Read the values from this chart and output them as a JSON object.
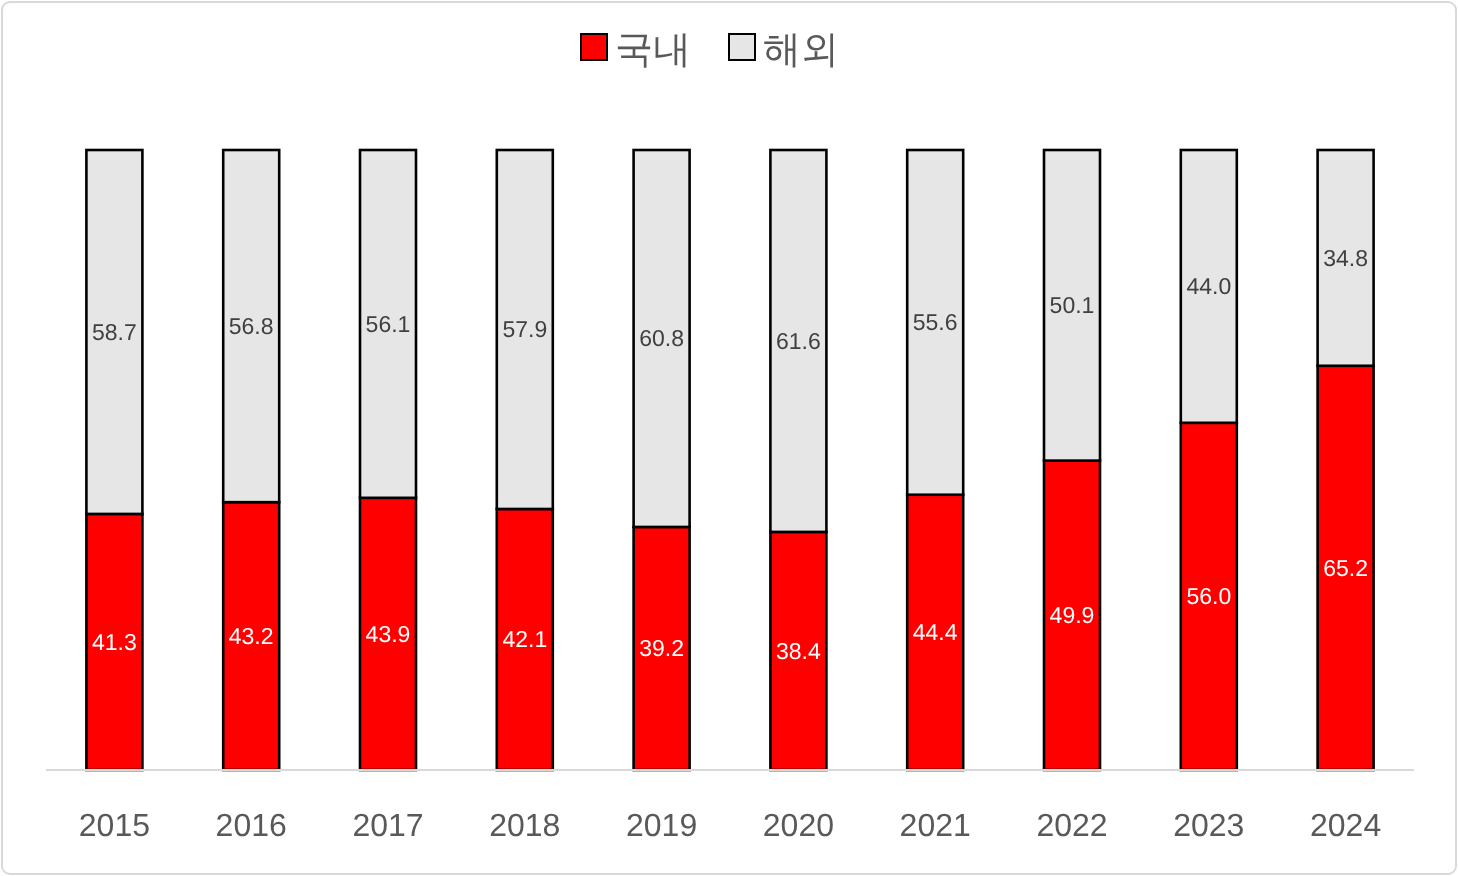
{
  "chart_data": {
    "type": "bar",
    "stacked": true,
    "legend": "top",
    "categories": [
      "2015",
      "2016",
      "2017",
      "2018",
      "2019",
      "2020",
      "2021",
      "2022",
      "2023",
      "2024"
    ],
    "series": [
      {
        "name": "국내",
        "color": "#ff0000",
        "values": [
          41.3,
          43.2,
          43.9,
          42.1,
          39.2,
          38.4,
          44.4,
          49.9,
          56.0,
          65.2
        ],
        "value_labels": [
          "41.3",
          "43.2",
          "43.9",
          "42.1",
          "39.2",
          "38.4",
          "44.4",
          "49.9",
          "56.0",
          "65.2"
        ]
      },
      {
        "name": "해외",
        "color": "#e7e6e6",
        "values": [
          58.7,
          56.8,
          56.1,
          57.9,
          60.8,
          61.6,
          55.6,
          50.1,
          44.0,
          34.8
        ],
        "value_labels": [
          "58.7",
          "56.8",
          "56.1",
          "57.9",
          "60.8",
          "61.6",
          "55.6",
          "50.1",
          "44.0",
          "34.8"
        ]
      }
    ]
  }
}
